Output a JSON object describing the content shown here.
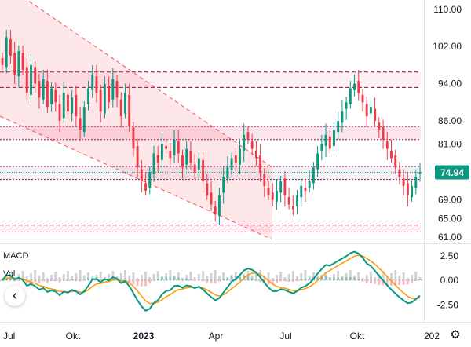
{
  "chart_data": {
    "type": "candlestick",
    "price_axis": {
      "labels": [
        "110.00",
        "102.00",
        "94.00",
        "86.00",
        "81.00",
        "69.00",
        "65.00",
        "61.00"
      ],
      "values": [
        110,
        102,
        94,
        86,
        81,
        69,
        65,
        61
      ],
      "range": [
        60,
        112
      ]
    },
    "last_price": {
      "label": "74.94",
      "value": 74.94,
      "color": "#089981"
    },
    "time_axis": {
      "labels": [
        "Jul",
        "Okt",
        "2023",
        "Apr",
        "Jul",
        "Okt",
        "202"
      ],
      "bold": [
        "2023"
      ]
    },
    "zones": [
      {
        "kind": "resistance",
        "top": 96.5,
        "bottom": 93.2
      },
      {
        "kind": "band",
        "top": 84.8,
        "bottom": 82.0
      },
      {
        "kind": "band",
        "top": 76.2,
        "bottom": 73.4
      },
      {
        "kind": "support",
        "top": 63.6,
        "bottom": 62.1
      }
    ],
    "channel": {
      "upper_start": 116,
      "upper_end": 76,
      "lower_start": 87,
      "lower_end": 60.5
    },
    "price_series": [
      98,
      104,
      100,
      96,
      101,
      97,
      92,
      98,
      94,
      91,
      95,
      89,
      93,
      90,
      86,
      92,
      88,
      91,
      87,
      84,
      89,
      93,
      96,
      92,
      88,
      94,
      90,
      95,
      91,
      87,
      92,
      85,
      80,
      76,
      73,
      71,
      75,
      79,
      77,
      81,
      80,
      78,
      82,
      79,
      76,
      80,
      77,
      75,
      78,
      73,
      70,
      68,
      66,
      70,
      74,
      76,
      78,
      77,
      80,
      83,
      82,
      80,
      78,
      75,
      72,
      70,
      69,
      71,
      73,
      70,
      68,
      67,
      70,
      72,
      71,
      73,
      76,
      79,
      81,
      83,
      80,
      84,
      86,
      88,
      90,
      93,
      94,
      92,
      90,
      87,
      89,
      86,
      84,
      82,
      80,
      78,
      76,
      74,
      72,
      70,
      72,
      74,
      75
    ],
    "macd": {
      "title": "MACD",
      "axis_labels": [
        "2.50",
        "0.00",
        "-2.50"
      ],
      "axis_values": [
        2.5,
        0,
        -2.5
      ],
      "range": [
        -3.6,
        3.6
      ],
      "macd_color": "#089981",
      "signal_color": "#FF9800"
    },
    "volume": {
      "title": "Vol",
      "color": "#9598A1"
    },
    "colors": {
      "up": "#089981",
      "down": "#F23645",
      "zone_edge": "#880E4F",
      "channel": "#F7525F"
    }
  },
  "controls": {
    "collapse_label": "‹",
    "settings_icon": "⚙"
  }
}
